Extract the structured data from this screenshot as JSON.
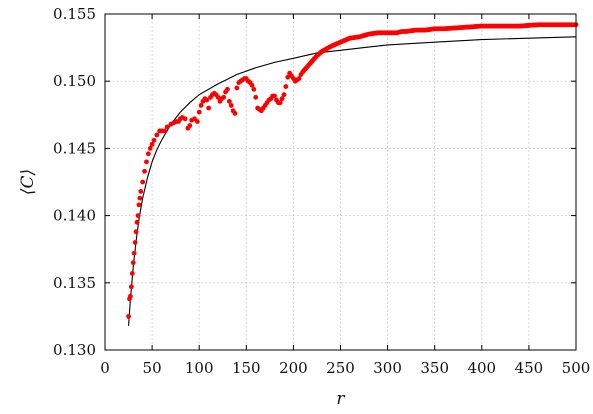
{
  "chart_data": {
    "type": "scatter",
    "title": "",
    "xlabel": "r",
    "ylabel": "⟨C⟩",
    "xlim": [
      0,
      500
    ],
    "ylim": [
      0.13,
      0.155
    ],
    "x_ticks": [
      0,
      50,
      100,
      150,
      200,
      250,
      300,
      350,
      400,
      450,
      500
    ],
    "x_tick_labels": [
      "0",
      "50",
      "100",
      "150",
      "200",
      "250",
      "300",
      "350",
      "400",
      "450",
      "500"
    ],
    "y_ticks": [
      0.13,
      0.135,
      0.14,
      0.145,
      0.15,
      0.155
    ],
    "y_tick_labels": [
      "0.130",
      "0.135",
      "0.140",
      "0.145",
      "0.150",
      "0.155"
    ],
    "grid": true,
    "legend": "none",
    "colors": {
      "points": "#ff0000",
      "fit": "#000000"
    },
    "series": [
      {
        "kind": "points",
        "x": [
          25,
          26,
          27,
          28,
          29,
          30,
          31,
          32,
          33,
          34,
          35,
          36,
          37,
          38,
          40,
          42,
          44,
          46,
          48,
          50,
          52,
          55,
          58,
          60,
          63,
          66,
          70,
          73,
          76,
          78,
          80,
          82,
          85,
          88,
          90,
          92,
          95,
          98,
          100,
          102,
          104,
          106,
          108,
          110,
          112,
          114,
          116,
          118,
          120,
          122,
          124,
          126,
          128,
          130,
          132,
          134,
          136,
          138,
          140,
          142,
          144,
          146,
          148,
          150,
          152,
          154,
          156,
          158,
          160,
          162,
          164,
          166,
          168,
          170,
          172,
          174,
          176,
          178,
          180,
          182,
          184,
          186,
          188,
          190,
          192,
          194,
          196,
          198,
          200,
          202,
          204,
          206,
          208,
          210,
          215,
          220,
          225,
          230,
          240,
          250,
          260,
          270,
          280,
          290,
          300,
          310,
          315,
          320,
          330,
          340,
          350,
          360,
          380,
          400,
          420,
          440,
          460,
          480,
          500
        ],
        "y": [
          0.1325,
          0.1338,
          0.134,
          0.1347,
          0.1357,
          0.1365,
          0.1372,
          0.138,
          0.1388,
          0.1395,
          0.14,
          0.1408,
          0.1413,
          0.1418,
          0.1425,
          0.1433,
          0.144,
          0.1446,
          0.145,
          0.1453,
          0.1456,
          0.146,
          0.1463,
          0.1463,
          0.1463,
          0.1466,
          0.1468,
          0.1469,
          0.147,
          0.147,
          0.1472,
          0.1473,
          0.1472,
          0.1465,
          0.1467,
          0.1471,
          0.1472,
          0.147,
          0.1477,
          0.1482,
          0.1485,
          0.1487,
          0.1486,
          0.148,
          0.1488,
          0.149,
          0.1491,
          0.149,
          0.1488,
          0.1485,
          0.1487,
          0.1488,
          0.1492,
          0.1494,
          0.1485,
          0.1482,
          0.1478,
          0.1476,
          0.1495,
          0.1499,
          0.15,
          0.1501,
          0.1502,
          0.1502,
          0.15,
          0.1499,
          0.1497,
          0.1494,
          0.1488,
          0.148,
          0.1479,
          0.1478,
          0.148,
          0.1482,
          0.1484,
          0.1486,
          0.1487,
          0.1489,
          0.1489,
          0.1486,
          0.1484,
          0.1484,
          0.1487,
          0.149,
          0.1496,
          0.1503,
          0.1506,
          0.1504,
          0.1502,
          0.15,
          0.1501,
          0.1502,
          0.1505,
          0.1507,
          0.1511,
          0.1515,
          0.1519,
          0.1522,
          0.1526,
          0.1529,
          0.1532,
          0.1533,
          0.1535,
          0.1536,
          0.1536,
          0.1536,
          0.1537,
          0.1537,
          0.1538,
          0.1538,
          0.1539,
          0.1539,
          0.154,
          0.1541,
          0.1541,
          0.1541,
          0.1542,
          0.1542,
          0.1542
        ]
      },
      {
        "kind": "fit",
        "x": [
          25,
          27,
          30,
          33,
          36,
          40,
          45,
          50,
          55,
          60,
          70,
          80,
          90,
          100,
          120,
          140,
          160,
          180,
          200,
          225,
          250,
          275,
          300,
          350,
          400,
          450,
          500
        ],
        "y": [
          0.1318,
          0.1338,
          0.1362,
          0.1381,
          0.1397,
          0.1413,
          0.1428,
          0.144,
          0.1449,
          0.1456,
          0.1468,
          0.1477,
          0.1484,
          0.149,
          0.1498,
          0.1505,
          0.151,
          0.1514,
          0.1517,
          0.1521,
          0.1523,
          0.1525,
          0.1527,
          0.1529,
          0.1531,
          0.1532,
          0.1533
        ]
      }
    ]
  }
}
